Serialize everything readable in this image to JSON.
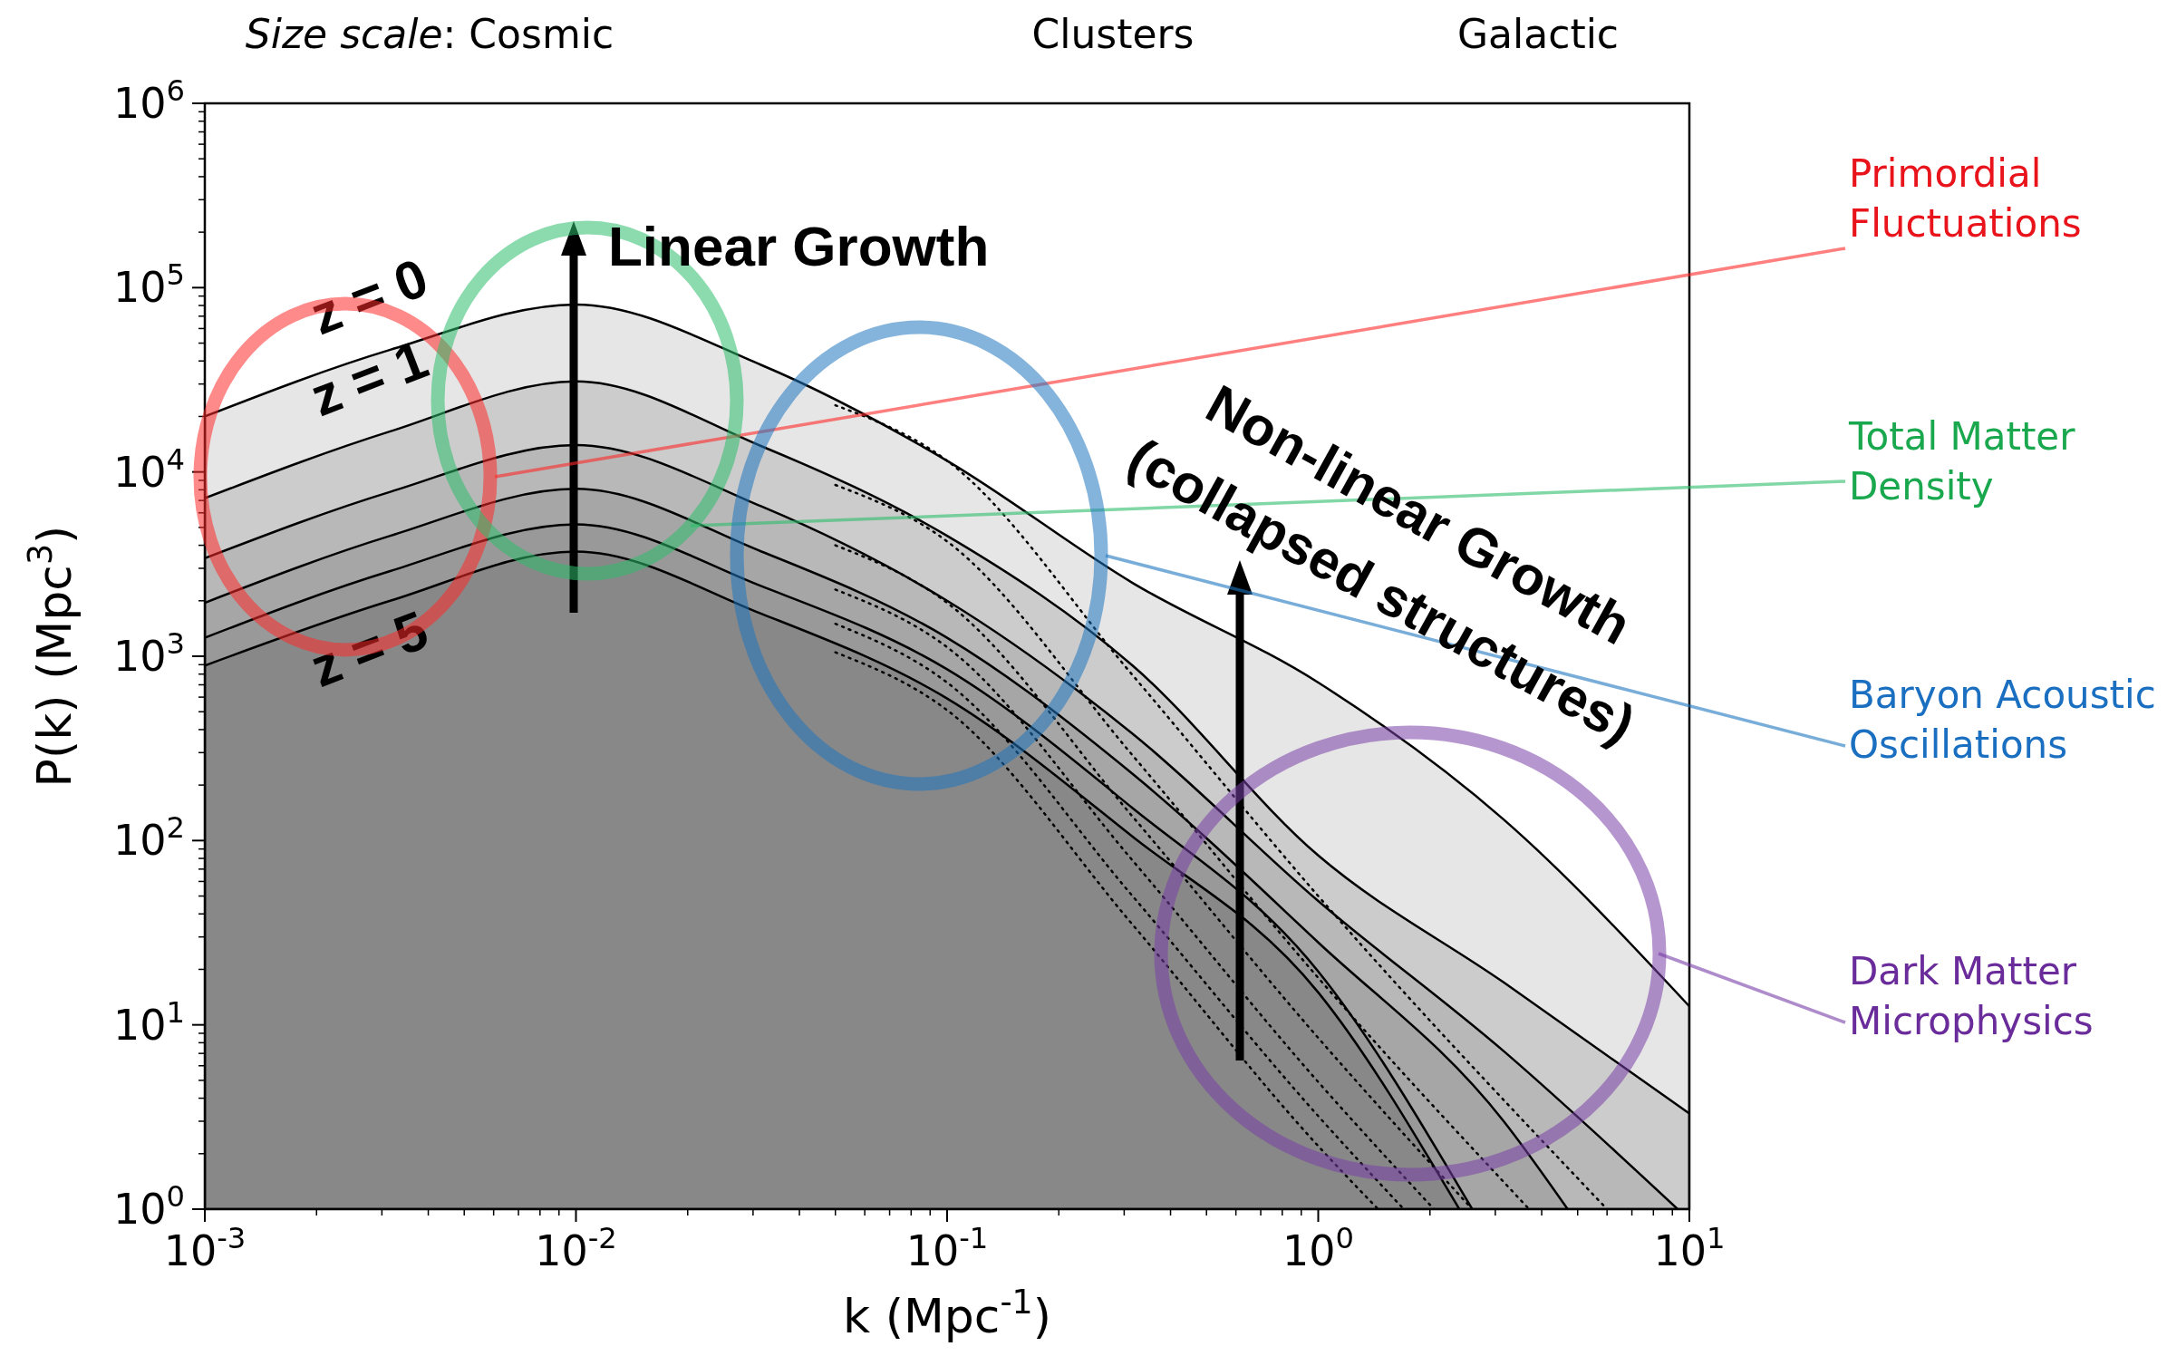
{
  "chart_data": {
    "type": "area",
    "xlabel": "k (Mpc$^{-1}$)",
    "ylabel": "P(k) (Mpc$^{3}$)",
    "log": "xy",
    "xlim": [
      0.001,
      10
    ],
    "ylim": [
      1,
      1000000
    ],
    "xticks": [
      {
        "value": 0.001,
        "label": "10$^{-3}$"
      },
      {
        "value": 0.01,
        "label": "10$^{-2}$"
      },
      {
        "value": 0.1,
        "label": "10$^{-1}$"
      },
      {
        "value": 1,
        "label": "10$^{0}$"
      },
      {
        "value": 10,
        "label": "10$^{1}$"
      }
    ],
    "yticks": [
      {
        "value": 1,
        "label": "10$^{0}$"
      },
      {
        "value": 10,
        "label": "10$^{1}$"
      },
      {
        "value": 100,
        "label": "10$^{2}$"
      },
      {
        "value": 1000,
        "label": "10$^{3}$"
      },
      {
        "value": 10000,
        "label": "10$^{4}$"
      },
      {
        "value": 100000,
        "label": "10$^{5}$"
      },
      {
        "value": 1000000,
        "label": "10$^{6}$"
      }
    ],
    "series": [
      {
        "name": "z = 0",
        "color": "#e6e6e6",
        "x": [
          0.001,
          0.00316,
          0.01,
          0.0316,
          0.1,
          0.316,
          1,
          3.16,
          10
        ],
        "values": [
          20000,
          46000,
          81000,
          38000,
          11500,
          2500,
          720,
          130,
          12.6
        ]
      },
      {
        "name": "z = 1",
        "color": "#cccccc",
        "x": [
          0.001,
          0.00316,
          0.01,
          0.0316,
          0.1,
          0.316,
          1,
          3.16,
          10
        ],
        "values": [
          7200,
          16600,
          31000,
          13800,
          4500,
          890,
          83,
          17,
          3.3
        ]
      },
      {
        "color": "#b8b8b8",
        "x": [
          0.001,
          0.00316,
          0.01,
          0.0316,
          0.1,
          0.316,
          1,
          3.16,
          9.3
        ],
        "values": [
          3400,
          7800,
          14000,
          6500,
          2000,
          380,
          47,
          7.2,
          1
        ]
      },
      {
        "color": "#a6a6a6",
        "x": [
          0.001,
          0.00316,
          0.01,
          0.0316,
          0.1,
          0.316,
          1,
          3.16,
          4.7
        ],
        "values": [
          1950,
          4500,
          8100,
          3700,
          1260,
          230,
          28,
          3,
          1
        ]
      },
      {
        "color": "#999999",
        "x": [
          0.001,
          0.00316,
          0.01,
          0.0316,
          0.1,
          0.316,
          1,
          2.6
        ],
        "values": [
          1260,
          2900,
          5200,
          2400,
          850,
          150,
          19.5,
          1
        ]
      },
      {
        "name": "z = 5",
        "color": "#888888",
        "x": [
          0.001,
          0.00316,
          0.01,
          0.0316,
          0.1,
          0.316,
          1,
          2.4
        ],
        "values": [
          890,
          2000,
          3700,
          1700,
          590,
          105,
          15,
          1
        ]
      },
      {
        "type": "line",
        "line_style": "dotted",
        "color": "#000000",
        "x": [
          0.05,
          0.1,
          0.316,
          1,
          6
        ],
        "values": [
          23000,
          11500,
          790,
          50,
          1
        ]
      },
      {
        "type": "line",
        "line_style": "dotted",
        "color": "#000000",
        "x": [
          0.05,
          0.1,
          0.316,
          1,
          3.7
        ],
        "values": [
          8500,
          4200,
          290,
          18,
          1
        ]
      },
      {
        "type": "line",
        "line_style": "dotted",
        "color": "#000000",
        "x": [
          0.05,
          0.1,
          0.316,
          1,
          2.6
        ],
        "values": [
          4000,
          1950,
          135,
          8.5,
          1
        ]
      },
      {
        "type": "line",
        "line_style": "dotted",
        "color": "#000000",
        "x": [
          0.05,
          0.1,
          0.316,
          1,
          2.05
        ],
        "values": [
          2300,
          1120,
          78,
          4.9,
          1
        ]
      },
      {
        "type": "line",
        "line_style": "dotted",
        "color": "#000000",
        "x": [
          0.05,
          0.1,
          0.316,
          1,
          1.7
        ],
        "values": [
          1500,
          720,
          50,
          3.2,
          1
        ]
      },
      {
        "type": "line",
        "line_style": "dotted",
        "color": "#000000",
        "x": [
          0.05,
          0.1,
          0.316,
          1,
          1.45
        ],
        "values": [
          1050,
          510,
          35,
          2.2,
          1
        ]
      }
    ],
    "annotations": [
      "Size scale: Cosmic",
      "Clusters",
      "Galactic",
      "Linear Growth",
      "Non-linear Growth",
      "(collapsed structures)",
      "Primordial Fluctuations",
      "Total Matter Density",
      "Baryon Acoustic Oscillations",
      "Dark Matter Microphysics"
    ]
  }
}
